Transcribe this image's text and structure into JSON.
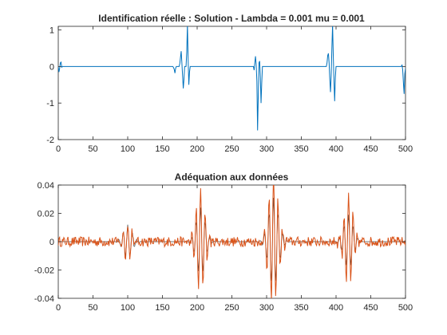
{
  "colors": {
    "solution": "#0072bd",
    "measured": "#d95319",
    "model": "#4a4a4a",
    "axes": "#262626"
  },
  "chart_data": [
    {
      "type": "line",
      "title": "Identification réelle : Solution - Lambda = 0.001 mu = 0.001",
      "xlim": [
        0,
        500
      ],
      "ylim": [
        -2,
        1.1
      ],
      "x_ticks": [
        0,
        50,
        100,
        150,
        200,
        250,
        300,
        350,
        400,
        450,
        500
      ],
      "y_ticks": [
        -2,
        -1,
        0,
        1
      ],
      "x_tick_labels": [
        "0",
        "50",
        "100",
        "150",
        "200",
        "250",
        "300",
        "350",
        "400",
        "450",
        "500"
      ],
      "y_tick_labels": [
        "-2",
        "-1",
        "0",
        "1"
      ],
      "grid": false,
      "series": [
        {
          "color": "#0072bd",
          "points": [
            [
              0,
              0
            ],
            [
              1,
              -0.15
            ],
            [
              2,
              -0.05
            ],
            [
              3,
              0.1
            ],
            [
              4,
              0.12
            ],
            [
              5,
              -0.02
            ],
            [
              6,
              0
            ],
            [
              165,
              0
            ],
            [
              166,
              -0.03
            ],
            [
              167,
              -0.08
            ],
            [
              168,
              -0.18
            ],
            [
              169,
              -0.05
            ],
            [
              170,
              0
            ],
            [
              174,
              0
            ],
            [
              175,
              0.08
            ],
            [
              176,
              0.25
            ],
            [
              177,
              0.42
            ],
            [
              178,
              0.1
            ],
            [
              179,
              -0.25
            ],
            [
              180,
              -0.6
            ],
            [
              181,
              -0.35
            ],
            [
              182,
              0
            ],
            [
              184,
              0
            ],
            [
              185,
              0.4
            ],
            [
              186,
              1.15
            ],
            [
              187,
              0.2
            ],
            [
              188,
              -0.5
            ],
            [
              189,
              -0.15
            ],
            [
              190,
              0
            ],
            [
              281,
              0
            ],
            [
              282,
              -0.1
            ],
            [
              283,
              0.1
            ],
            [
              284,
              0.28
            ],
            [
              285,
              0.05
            ],
            [
              286,
              -0.4
            ],
            [
              287,
              -1.75
            ],
            [
              288,
              -0.8
            ],
            [
              289,
              0.1
            ],
            [
              290,
              0.15
            ],
            [
              291,
              -0.3
            ],
            [
              292,
              -1.0
            ],
            [
              293,
              -0.45
            ],
            [
              294,
              0
            ],
            [
              386,
              0
            ],
            [
              387,
              0.1
            ],
            [
              388,
              0.3
            ],
            [
              389,
              0.36
            ],
            [
              390,
              0.1
            ],
            [
              391,
              -0.35
            ],
            [
              392,
              -0.7
            ],
            [
              393,
              -0.25
            ],
            [
              394,
              0.5
            ],
            [
              395,
              1.15
            ],
            [
              396,
              0.3
            ],
            [
              397,
              -0.4
            ],
            [
              398,
              -0.95
            ],
            [
              399,
              -0.3
            ],
            [
              400,
              0
            ],
            [
              494,
              0
            ],
            [
              495,
              0.05
            ],
            [
              496,
              -0.1
            ],
            [
              497,
              -0.45
            ],
            [
              498,
              -0.75
            ],
            [
              499,
              -0.2
            ],
            [
              500,
              -0.05
            ]
          ]
        }
      ]
    },
    {
      "type": "line",
      "title": "Adéquation aux données",
      "xlim": [
        0,
        500
      ],
      "ylim": [
        -0.04,
        0.04
      ],
      "x_ticks": [
        0,
        50,
        100,
        150,
        200,
        250,
        300,
        350,
        400,
        450,
        500
      ],
      "y_ticks": [
        -0.04,
        -0.02,
        0,
        0.02,
        0.04
      ],
      "x_tick_labels": [
        "0",
        "50",
        "100",
        "150",
        "200",
        "250",
        "300",
        "350",
        "400",
        "450",
        "500"
      ],
      "y_tick_labels": [
        "-0.04",
        "-0.02",
        "0",
        "0.02",
        "0.04"
      ],
      "grid": false,
      "series": [
        {
          "color": "#4a4a4a",
          "generator": {
            "n": 500,
            "noise_amp": 0,
            "osc_period": 6.5,
            "bursts": [
              {
                "center": 100,
                "width": 9,
                "amp": 0.012
              },
              {
                "center": 205,
                "width": 9,
                "amp": 0.024
              },
              {
                "center": 310,
                "width": 10,
                "amp": 0.031
              },
              {
                "center": 418,
                "width": 9,
                "amp": 0.019
              }
            ]
          }
        },
        {
          "color": "#d95319",
          "generator": {
            "n": 500,
            "noise_amp": 0.0035,
            "osc_period": 6.5,
            "bursts": [
              {
                "center": 100,
                "width": 9,
                "amp": 0.014
              },
              {
                "center": 205,
                "width": 9,
                "amp": 0.037
              },
              {
                "center": 310,
                "width": 10,
                "amp": 0.045
              },
              {
                "center": 418,
                "width": 9,
                "amp": 0.032
              }
            ]
          }
        }
      ]
    }
  ]
}
